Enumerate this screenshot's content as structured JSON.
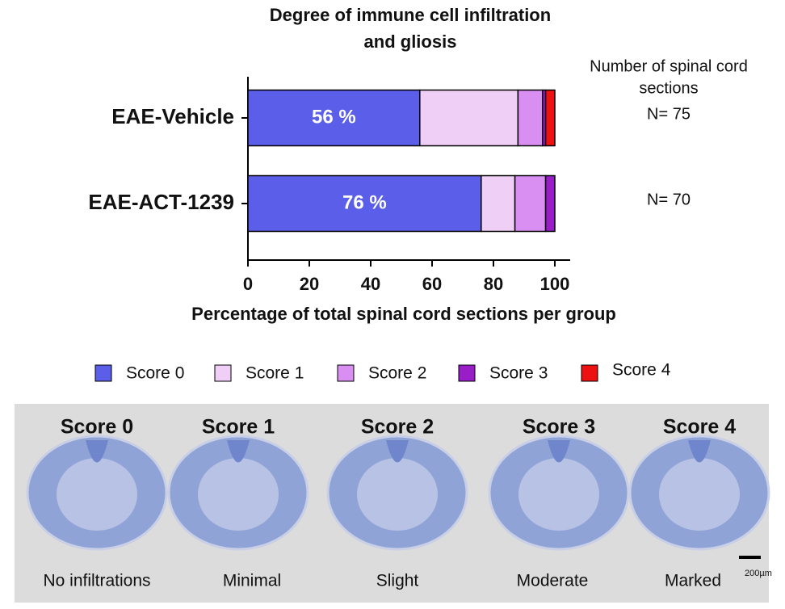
{
  "chart_data": {
    "type": "stacked-barh",
    "title": [
      "Degree of immune cell infiltration",
      "and gliosis"
    ],
    "categories": [
      "EAE-Vehicle",
      "EAE-ACT-1239"
    ],
    "series": [
      {
        "name": "Score 0",
        "color": "#5a5ee8",
        "values": [
          56,
          76
        ],
        "value_labels": [
          "56 %",
          "76 %"
        ]
      },
      {
        "name": "Score 1",
        "color": "#efcff6",
        "values": [
          32,
          11
        ]
      },
      {
        "name": "Score 2",
        "color": "#d98ef2",
        "values": [
          8,
          10
        ]
      },
      {
        "name": "Score 3",
        "color": "#9a1ec8",
        "values": [
          1,
          3
        ]
      },
      {
        "name": "Score 4",
        "color": "#ee1111",
        "values": [
          3,
          0
        ]
      }
    ],
    "xlabel": "Percentage of total spinal cord sections per group",
    "xlim": [
      0,
      105
    ],
    "xticks": [
      0,
      20,
      40,
      60,
      80,
      100
    ],
    "annotation": [
      "Number of spinal cord",
      "sections"
    ],
    "n_labels": [
      "N= 75",
      "N= 70"
    ]
  },
  "micrographs": {
    "scores": [
      "Score 0",
      "Score 1",
      "Score 2",
      "Score 3",
      "Score 4"
    ],
    "descriptions": [
      "No infiltrations",
      "Minimal",
      "Slight",
      "Moderate",
      "Marked"
    ],
    "scale_bar": "200µm"
  }
}
